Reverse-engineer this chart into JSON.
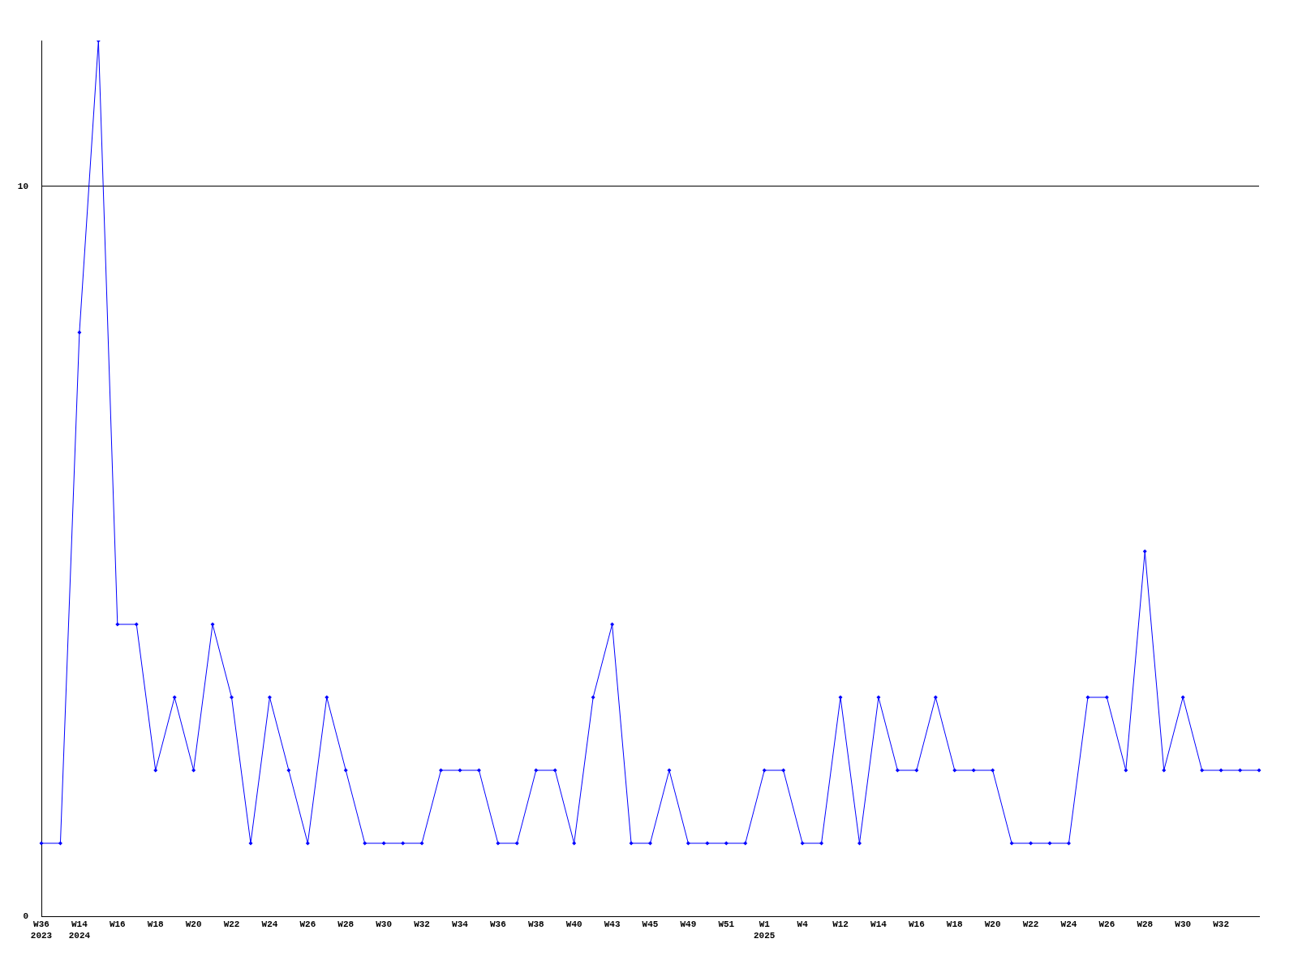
{
  "chart_data": {
    "type": "line",
    "categories": [
      "W36\n2023",
      null,
      "W14\n2024",
      null,
      "W16",
      null,
      "W18",
      null,
      "W20",
      null,
      "W22",
      null,
      "W24",
      null,
      "W26",
      null,
      "W28",
      null,
      "W30",
      null,
      "W32",
      null,
      "W34",
      null,
      "W36",
      null,
      "W38",
      null,
      "W40",
      null,
      "W43",
      null,
      "W45",
      null,
      "W49",
      null,
      "W51",
      null,
      "W1\n2025",
      null,
      "W4",
      null,
      "W12",
      null,
      "W14",
      null,
      "W16",
      null,
      "W18",
      null,
      "W20",
      null,
      "W22",
      null,
      "W24",
      null,
      "W26",
      null,
      "W28",
      null,
      "W30",
      null,
      "W32",
      null,
      null
    ],
    "series": [
      {
        "color": "#0000ff",
        "values": [
          1,
          1,
          8,
          12,
          4,
          4,
          2,
          3,
          2,
          4,
          3,
          1,
          3,
          2,
          1,
          3,
          2,
          1,
          1,
          1,
          1,
          2,
          2,
          2,
          1,
          1,
          2,
          2,
          1,
          3,
          4,
          1,
          1,
          2,
          1,
          1,
          1,
          1,
          2,
          2,
          1,
          1,
          3,
          1,
          3,
          2,
          2,
          3,
          2,
          2,
          2,
          1,
          1,
          1,
          1,
          3,
          3,
          2,
          5,
          2,
          3,
          2,
          2,
          2,
          2
        ]
      }
    ],
    "ylim": [
      0,
      12
    ],
    "yticks": [
      0,
      10
    ],
    "grid": "y",
    "legend": false,
    "marker": "diamond",
    "line_style": "solid"
  }
}
